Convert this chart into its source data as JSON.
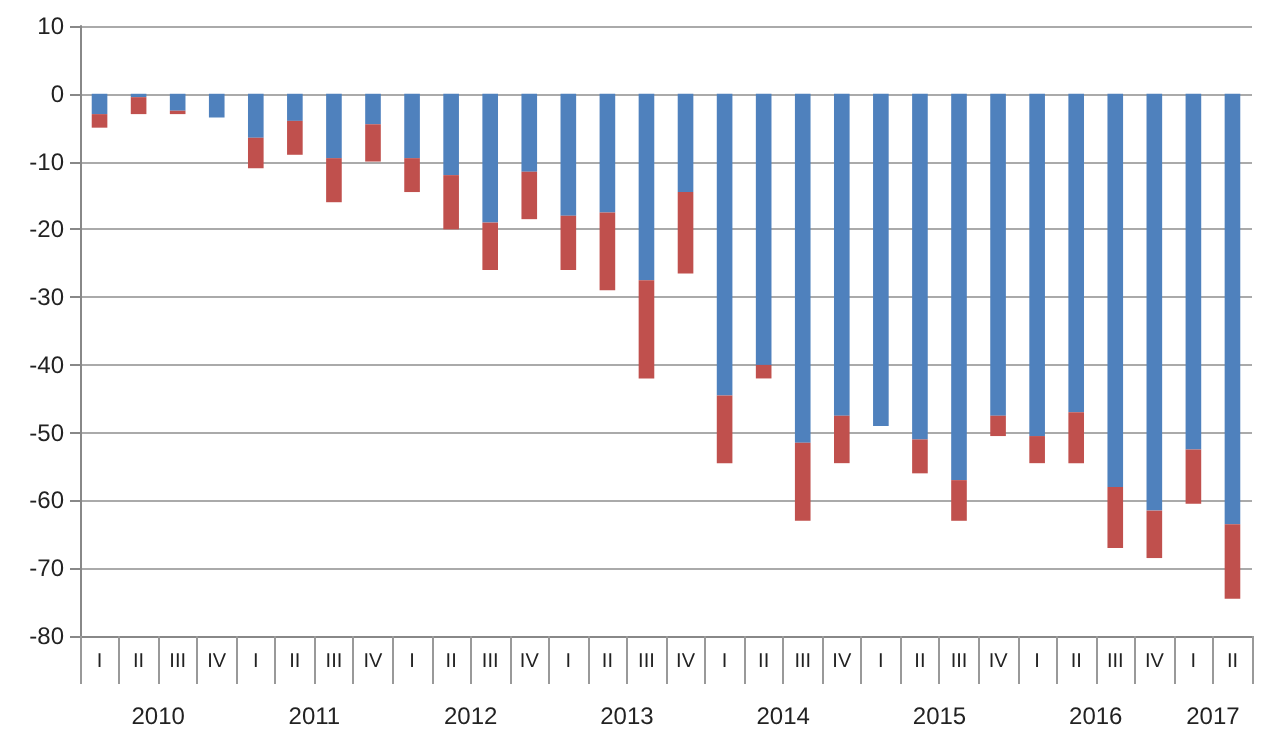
{
  "chart_data": {
    "type": "bar",
    "stacked": true,
    "categories": [
      "I",
      "II",
      "III",
      "IV",
      "I",
      "II",
      "III",
      "IV",
      "I",
      "II",
      "III",
      "IV",
      "I",
      "II",
      "III",
      "IV",
      "I",
      "II",
      "III",
      "IV",
      "I",
      "II",
      "III",
      "IV",
      "I",
      "II",
      "III",
      "IV",
      "I",
      "II"
    ],
    "series": [
      {
        "color": "#4f81bd",
        "values": [
          -3,
          -0.5,
          -2.5,
          -3.5,
          -6.5,
          -4,
          -9.5,
          -4.5,
          -9.5,
          -12,
          -19,
          -11.5,
          -18,
          -17.5,
          -27.5,
          -14.5,
          -44.5,
          -40,
          -51.5,
          -47.5,
          -49,
          -51,
          -57,
          -47.5,
          -50.5,
          -47,
          -58,
          -61.5,
          -52.5,
          -63.5
        ]
      },
      {
        "color": "#c0504d",
        "values": [
          -2,
          -2.5,
          -0.5,
          0,
          -4.5,
          -5,
          -6.5,
          -5.5,
          -5,
          -8,
          -7,
          -7,
          -8,
          -11.5,
          -14.5,
          -12,
          -10,
          -2,
          -11.5,
          -7,
          0,
          -5,
          -6,
          -3,
          -4,
          -7.5,
          -9,
          -7,
          -8,
          -11
        ]
      }
    ],
    "annotations": [
      "2010",
      "2011",
      "2012",
      "2013",
      "2014",
      "2015",
      "2016",
      "2017"
    ],
    "ylim": [
      -80,
      10
    ],
    "yticks": [
      -80,
      -70,
      -60,
      -50,
      -40,
      -30,
      -20,
      -10,
      0,
      10
    ],
    "grid": "y"
  }
}
